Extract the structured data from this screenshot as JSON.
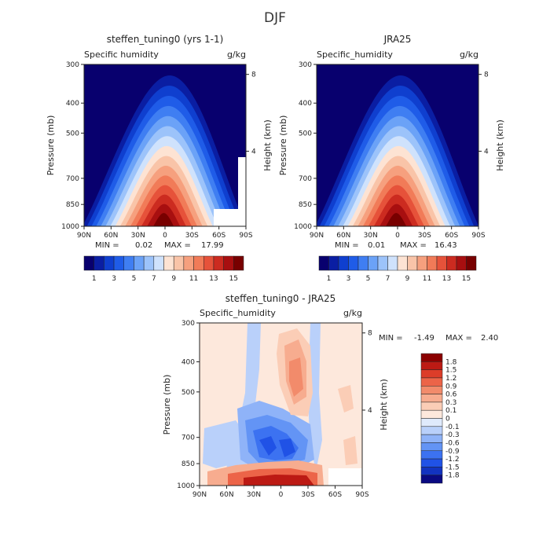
{
  "figure": {
    "title": "DJF"
  },
  "colors": {
    "levels": [
      "#08006e",
      "#0a1ea3",
      "#0f3fcf",
      "#1f5ce8",
      "#3f7ef2",
      "#6ba2f7",
      "#9cc3fa",
      "#cfe2fc",
      "#fde3d3",
      "#f9c4a8",
      "#f6a07e",
      "#f17b58",
      "#e6523a",
      "#cc2b20",
      "#a80f10",
      "#780000"
    ],
    "diff": [
      "#0a0a82",
      "#1233c0",
      "#2052e6",
      "#3c72f1",
      "#6394f5",
      "#8fb3f8",
      "#b9d0fa",
      "#dfeafc",
      "#fde8dc",
      "#fbcdb6",
      "#f7ac8f",
      "#f28b6b",
      "#ec6448",
      "#dc3d29",
      "#bc1a14",
      "#8b0000"
    ],
    "fill": "#00008b"
  },
  "chart_data": [
    {
      "type": "heatmap",
      "title": "steffen_tuning0 (yrs 1-1)",
      "left_label": "Specific humidity",
      "right_label": "g/kg",
      "ylabel": "Pressure (mb)",
      "ylabel_right": "Height (km)",
      "x_ticks": [
        "90N",
        "60N",
        "30N",
        "0",
        "30S",
        "60S",
        "90S"
      ],
      "y_ticks": [
        "300",
        "400",
        "500",
        "700",
        "850",
        "1000"
      ],
      "right_ticks": [
        "8",
        "4"
      ],
      "min_label": "MIN =",
      "min": "0.02",
      "max_label": "MAX =",
      "max": "17.99",
      "colorbar_labels": [
        "1",
        "3",
        "5",
        "7",
        "9",
        "11",
        "13",
        "15"
      ]
    },
    {
      "type": "heatmap",
      "title": "JRA25",
      "left_label": "Specific_humidity",
      "right_label": "g/kg",
      "ylabel": "Pressure (mb)",
      "ylabel_right": "Height (km)",
      "x_ticks": [
        "90N",
        "60N",
        "30N",
        "0",
        "30S",
        "60S",
        "90S"
      ],
      "y_ticks": [
        "300",
        "400",
        "500",
        "700",
        "850",
        "1000"
      ],
      "right_ticks": [
        "8",
        "4"
      ],
      "min_label": "MIN =",
      "min": "0.01",
      "max_label": "MAX =",
      "max": "16.43",
      "colorbar_labels": [
        "1",
        "3",
        "5",
        "7",
        "9",
        "11",
        "13",
        "15"
      ]
    },
    {
      "type": "heatmap",
      "title": "steffen_tuning0 - JRA25",
      "left_label": "Specific_humidity",
      "right_label": "g/kg",
      "ylabel": "Pressure (mb)",
      "ylabel_right": "Height (km)",
      "x_ticks": [
        "90N",
        "60N",
        "30N",
        "0",
        "30S",
        "60S",
        "90S"
      ],
      "y_ticks": [
        "300",
        "400",
        "500",
        "700",
        "850",
        "1000"
      ],
      "right_ticks": [
        "8",
        "4"
      ],
      "min_label": "MIN =",
      "min": "-1.49",
      "max_label": "MAX =",
      "max": "2.40",
      "colorbar_labels": [
        "1.8",
        "1.5",
        "1.2",
        "0.9",
        "0.6",
        "0.3",
        "0.1",
        "0",
        "-0.1",
        "-0.3",
        "-0.6",
        "-0.9",
        "-1.2",
        "-1.5",
        "-1.8"
      ]
    }
  ]
}
